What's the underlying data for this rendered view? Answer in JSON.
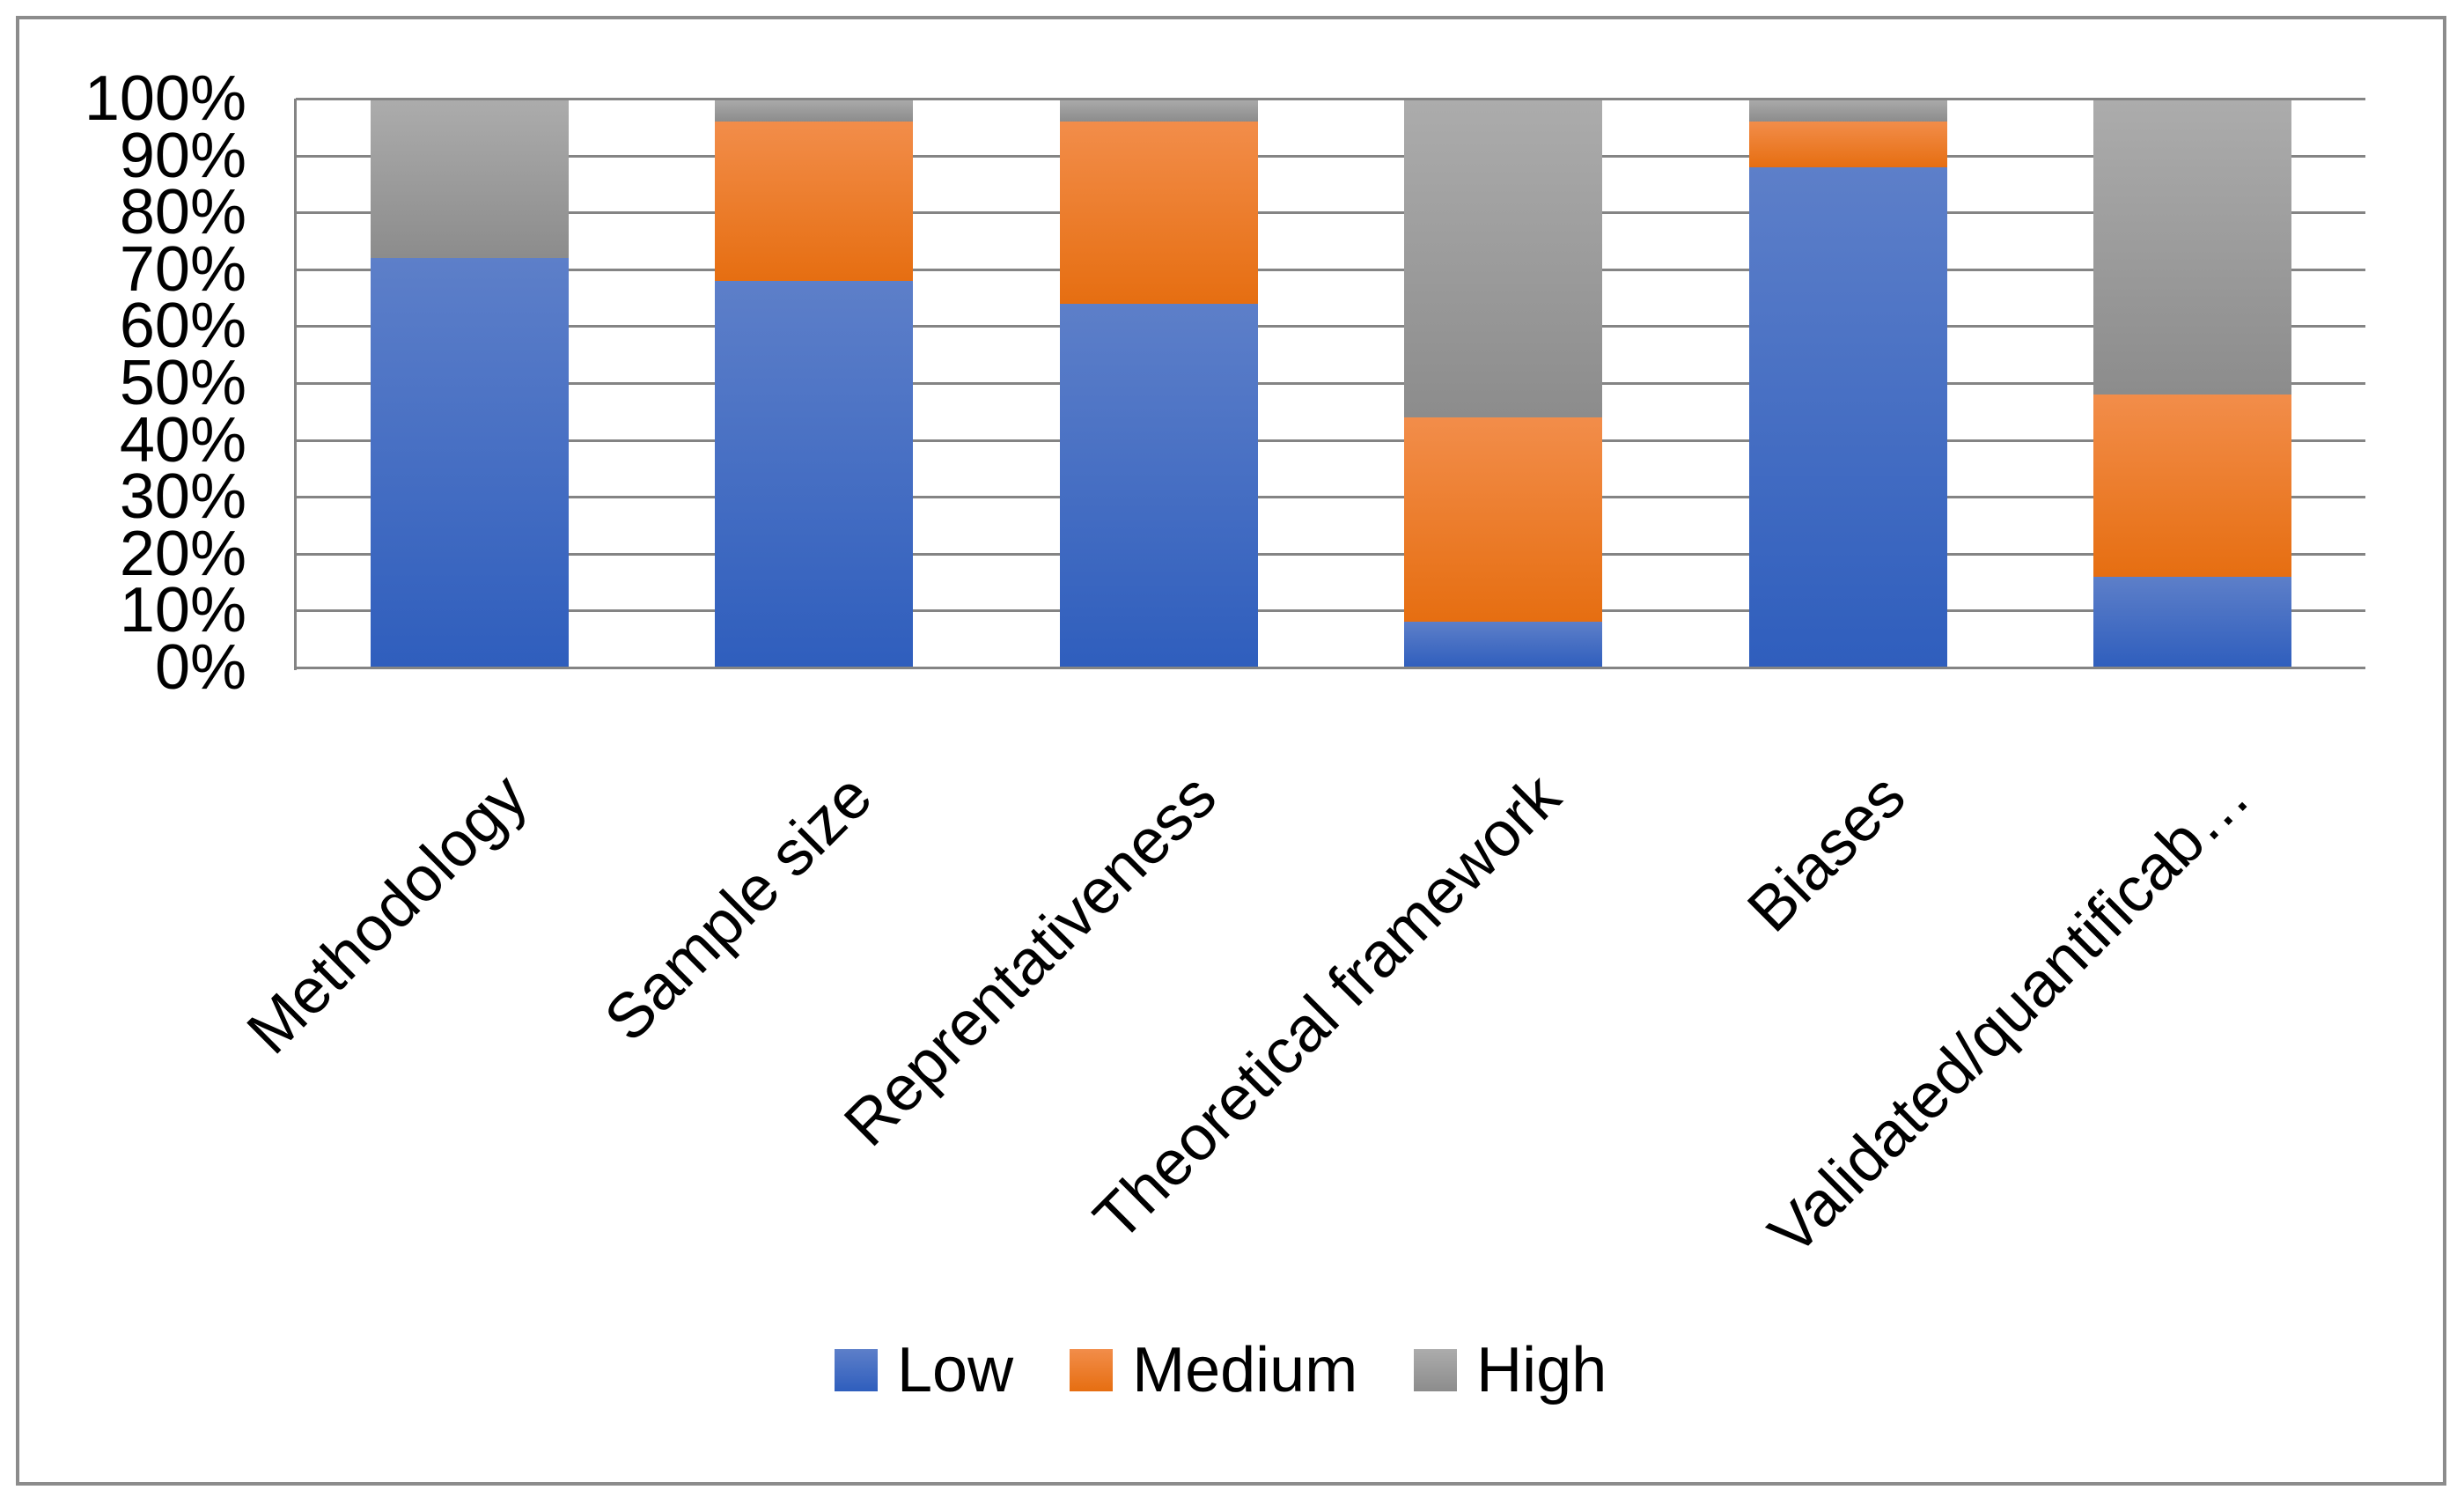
{
  "chart_data": {
    "type": "bar",
    "variant": "stacked-100-percent-column",
    "title": "",
    "xlabel": "",
    "ylabel": "",
    "categories": [
      "Methodology",
      "Sample size",
      "Reprentativeness",
      "Theoretical framework",
      "Biases",
      "Validated/quantificab…"
    ],
    "series": [
      {
        "name": "Low",
        "color": "#4472C4",
        "gradient_top": "#5D7FC9",
        "gradient_bottom": "#2F5EBD",
        "values": [
          72,
          68,
          64,
          8,
          88,
          16
        ]
      },
      {
        "name": "Medium",
        "color": "#ED7D31",
        "gradient_top": "#F28D4A",
        "gradient_bottom": "#E66E11",
        "values": [
          0,
          28,
          32,
          36,
          8,
          32
        ]
      },
      {
        "name": "High",
        "color": "#A5A5A5",
        "gradient_top": "#ACACAC",
        "gradient_bottom": "#8C8C8C",
        "values": [
          28,
          4,
          4,
          56,
          4,
          52
        ]
      }
    ],
    "y_axis": {
      "ticks": [
        "100%",
        "90%",
        "80%",
        "70%",
        "60%",
        "50%",
        "40%",
        "30%",
        "20%",
        "10%",
        "0%"
      ],
      "min": 0,
      "max": 100,
      "unit": "%"
    },
    "grid": "horizontal",
    "legend_position": "bottom",
    "legend_labels": [
      "Low",
      "Medium",
      "High"
    ]
  },
  "colors": {
    "background": "#FFFFFF",
    "frame_border": "#8C8C8C",
    "gridline": "#848484",
    "axis_line": "#848484",
    "text": "#000000"
  }
}
